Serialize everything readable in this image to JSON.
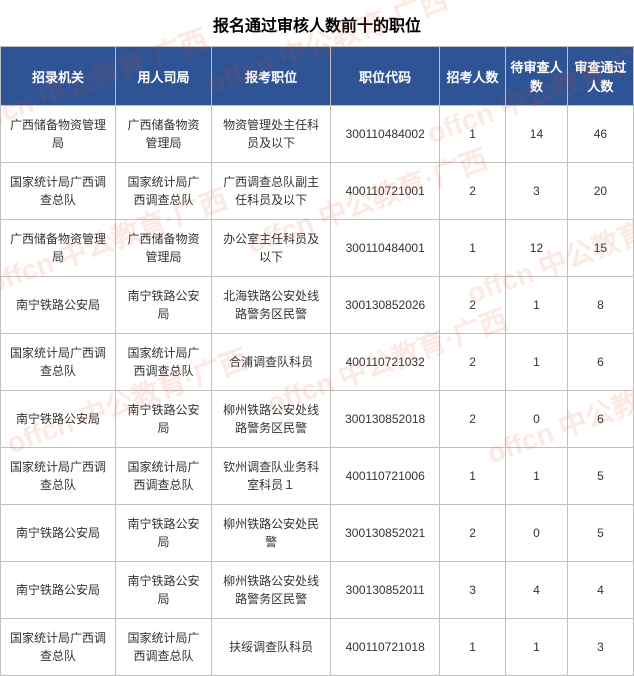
{
  "title": "报名通过审核人数前十的职位",
  "watermark_text": "offcn 中公教育·广西",
  "headers": [
    "招录机关",
    "用人司局",
    "报考职位",
    "职位代码",
    "招考人数",
    "待审查人数",
    "审查通过人数"
  ],
  "rows": [
    [
      "广西储备物资管理局",
      "广西储备物资管理局",
      "物资管理处主任科员及以下",
      "300110484002",
      "1",
      "14",
      "46"
    ],
    [
      "国家统计局广西调查总队",
      "国家统计局广西调查总队",
      "广西调查总队副主任科员及以下",
      "400110721001",
      "2",
      "3",
      "20"
    ],
    [
      "广西储备物资管理局",
      "广西储备物资管理局",
      "办公室主任科员及以下",
      "300110484001",
      "1",
      "12",
      "15"
    ],
    [
      "南宁铁路公安局",
      "南宁铁路公安局",
      "北海铁路公安处线路警务区民警",
      "300130852026",
      "2",
      "1",
      "8"
    ],
    [
      "国家统计局广西调查总队",
      "国家统计局广西调查总队",
      "合浦调查队科员",
      "400110721032",
      "2",
      "1",
      "6"
    ],
    [
      "南宁铁路公安局",
      "南宁铁路公安局",
      "柳州铁路公安处线路警务区民警",
      "300130852018",
      "2",
      "0",
      "6"
    ],
    [
      "国家统计局广西调查总队",
      "国家统计局广西调查总队",
      "钦州调查队业务科室科员１",
      "400110721006",
      "1",
      "1",
      "5"
    ],
    [
      "南宁铁路公安局",
      "南宁铁路公安局",
      "柳州铁路公安处民警",
      "300130852021",
      "2",
      "0",
      "5"
    ],
    [
      "南宁铁路公安局",
      "南宁铁路公安局",
      "柳州铁路公安处线路警务区民警",
      "300130852011",
      "3",
      "4",
      "4"
    ],
    [
      "国家统计局广西调查总队",
      "国家统计局广西调查总队",
      "扶绥调查队科员",
      "400110721018",
      "1",
      "1",
      "3"
    ]
  ],
  "col_widths": [
    "108px",
    "90px",
    "112px",
    "102px",
    "62px",
    "58px",
    "62px"
  ],
  "header_bg": "#2f5496",
  "header_fg": "#ffffff",
  "border_color": "#c0c0c0",
  "body_fg": "#333333",
  "watermark_color": "rgba(230,70,30,0.12)"
}
